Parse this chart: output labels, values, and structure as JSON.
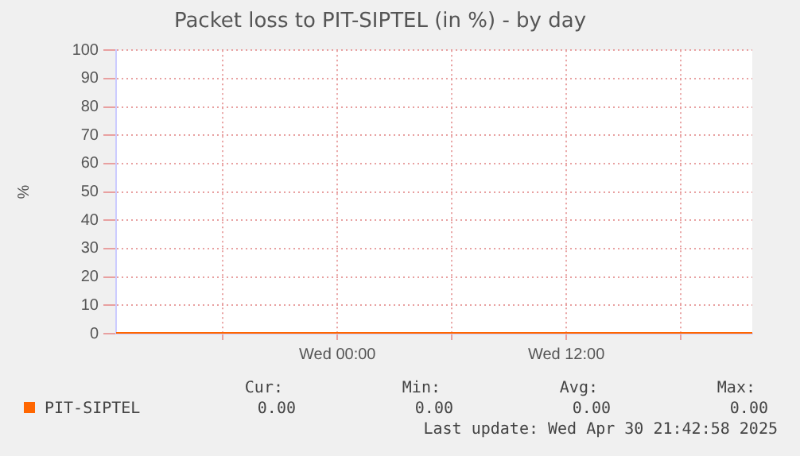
{
  "chart_data": {
    "type": "line",
    "title": "Packet loss to PIT-SIPTEL (in %) - by day",
    "ylabel": "%",
    "x": [
      "2025-04-29T12:24",
      "2025-04-30T21:45"
    ],
    "series": [
      {
        "name": "PIT-SIPTEL",
        "color": "#ff6600",
        "values": [
          0,
          0
        ]
      }
    ],
    "xlim": [
      "2025-04-29T12:24",
      "2025-04-30T21:45"
    ],
    "xticks": [
      {
        "value": "2025-04-29T18:00",
        "label": null
      },
      {
        "value": "2025-04-30T00:00",
        "label": "Wed 00:00"
      },
      {
        "value": "2025-04-30T06:00",
        "label": null
      },
      {
        "value": "2025-04-30T12:00",
        "label": "Wed 12:00"
      },
      {
        "value": "2025-04-30T18:00",
        "label": null
      }
    ],
    "ylim": [
      0,
      100
    ],
    "yticks": [
      0,
      10,
      20,
      30,
      40,
      50,
      60,
      70,
      80,
      90,
      100
    ],
    "grid": true,
    "legend": "bottom",
    "marker": "none",
    "line_style": "solid",
    "annotations": [
      "Cur:",
      "Min:",
      "Avg:",
      "Max:",
      "0.00",
      "0.00",
      "0.00",
      "0.00",
      "Last update: Wed Apr 30 21:42:58 2025"
    ]
  }
}
